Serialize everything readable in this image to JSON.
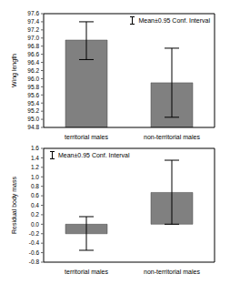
{
  "chart_data": [
    {
      "type": "bar",
      "y_label": "Wing length",
      "categories": [
        "territorial males",
        "non-territorial males"
      ],
      "series": [
        {
          "name": "Mean±0.95 Conf. Interval",
          "color": "#808080",
          "values": [
            96.95,
            95.9
          ],
          "ci": [
            [
              96.47,
              97.4
            ],
            [
              95.05,
              96.75
            ]
          ]
        }
      ],
      "ylim": [
        94.8,
        97.6
      ],
      "yticks": [
        94.8,
        {
          "value": 95,
          "label": "95.0"
        },
        95.2,
        95.4,
        95.6,
        95.8,
        {
          "value": 96,
          "label": "96.0"
        },
        96.2,
        96.4,
        96.6,
        96.8,
        {
          "value": 97,
          "label": "97.0"
        },
        97.2,
        97.4,
        97.6
      ],
      "legend": "top-right"
    },
    {
      "type": "bar",
      "y_label": "Residual body mass",
      "categories": [
        "territorial males",
        "non-territorial males"
      ],
      "series": [
        {
          "name": "Mean±0.95 Conf. Interval",
          "color": "#808080",
          "values": [
            -0.2,
            0.67
          ],
          "ci": [
            [
              -0.55,
              0.16
            ],
            [
              0.0,
              1.35
            ]
          ]
        }
      ],
      "ylim": [
        -0.8,
        1.6
      ],
      "yticks": [
        -0.8,
        -0.6,
        -0.4,
        -0.2,
        {
          "value": 0,
          "label": "0.0"
        },
        0.2,
        0.4,
        0.6,
        0.8,
        {
          "value": 1,
          "label": "1.0"
        },
        1.2,
        1.4,
        1.6
      ],
      "legend": "top-left"
    }
  ]
}
